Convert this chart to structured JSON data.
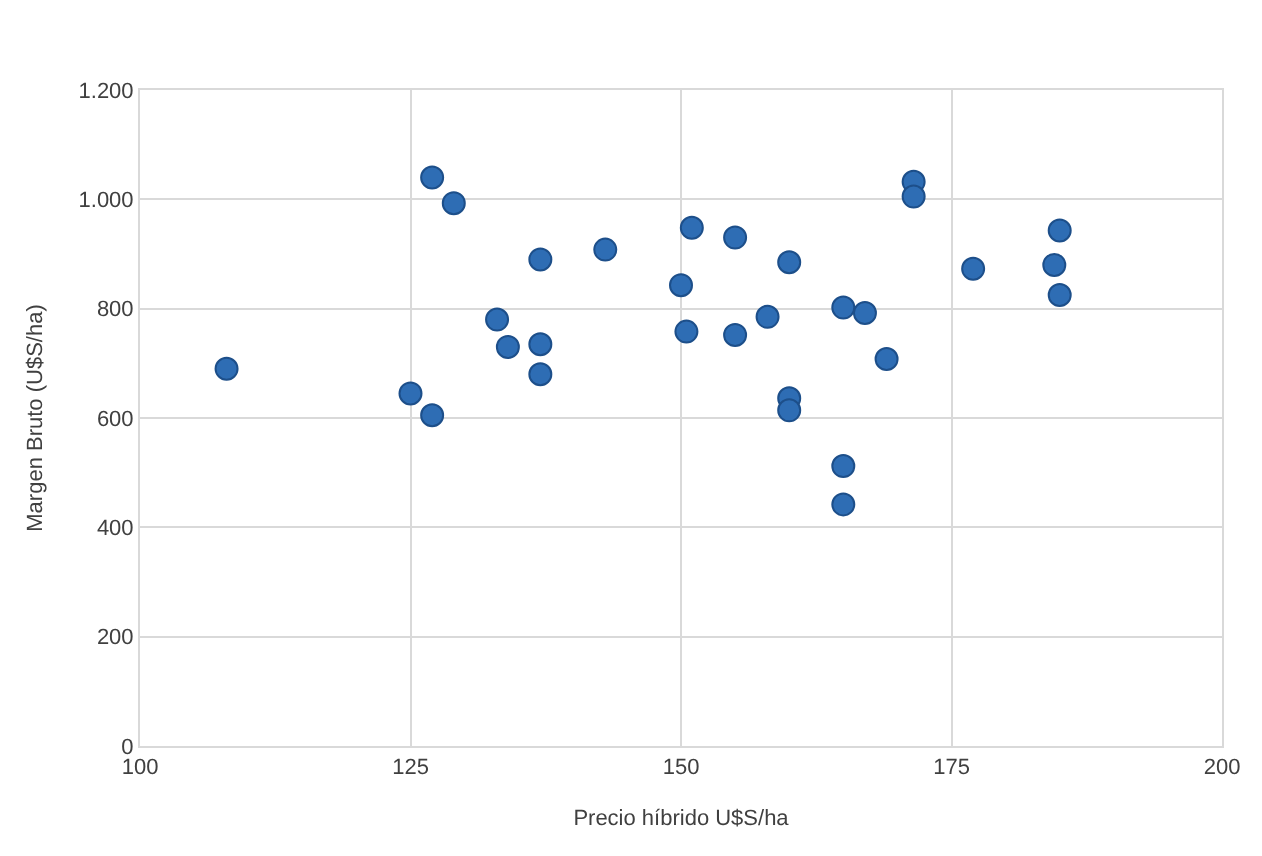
{
  "chart_data": {
    "type": "scatter",
    "xlabel": "Precio híbrido U$S/ha",
    "ylabel": "Margen Bruto (U$S/ha)",
    "x": [
      108,
      125,
      127,
      127,
      129,
      133,
      134,
      137,
      137,
      137,
      143,
      150,
      150.5,
      151,
      155,
      155,
      158,
      160,
      160,
      160,
      165,
      167,
      165,
      165,
      169,
      171.5,
      171.5,
      177,
      184.5,
      185,
      185
    ],
    "series": [
      {
        "color": "#2e6db4",
        "values": [
          690,
          645,
          605,
          1040,
          993,
          780,
          730,
          735,
          680,
          890,
          908,
          843,
          758,
          948,
          930,
          752,
          785,
          885,
          636,
          614,
          802,
          792,
          512,
          442,
          708,
          1032,
          1005,
          873,
          880,
          943,
          825
        ]
      }
    ],
    "xlim": [
      100,
      200
    ],
    "xticks": [
      100,
      125,
      150,
      175,
      200
    ],
    "ylim": [
      0,
      1200
    ],
    "yticks": [
      0,
      200,
      400,
      600,
      800,
      {
        "value": 1000,
        "label": "1.000"
      },
      {
        "value": 1200,
        "label": "1.200"
      }
    ],
    "grid": true,
    "marker": "circle"
  }
}
